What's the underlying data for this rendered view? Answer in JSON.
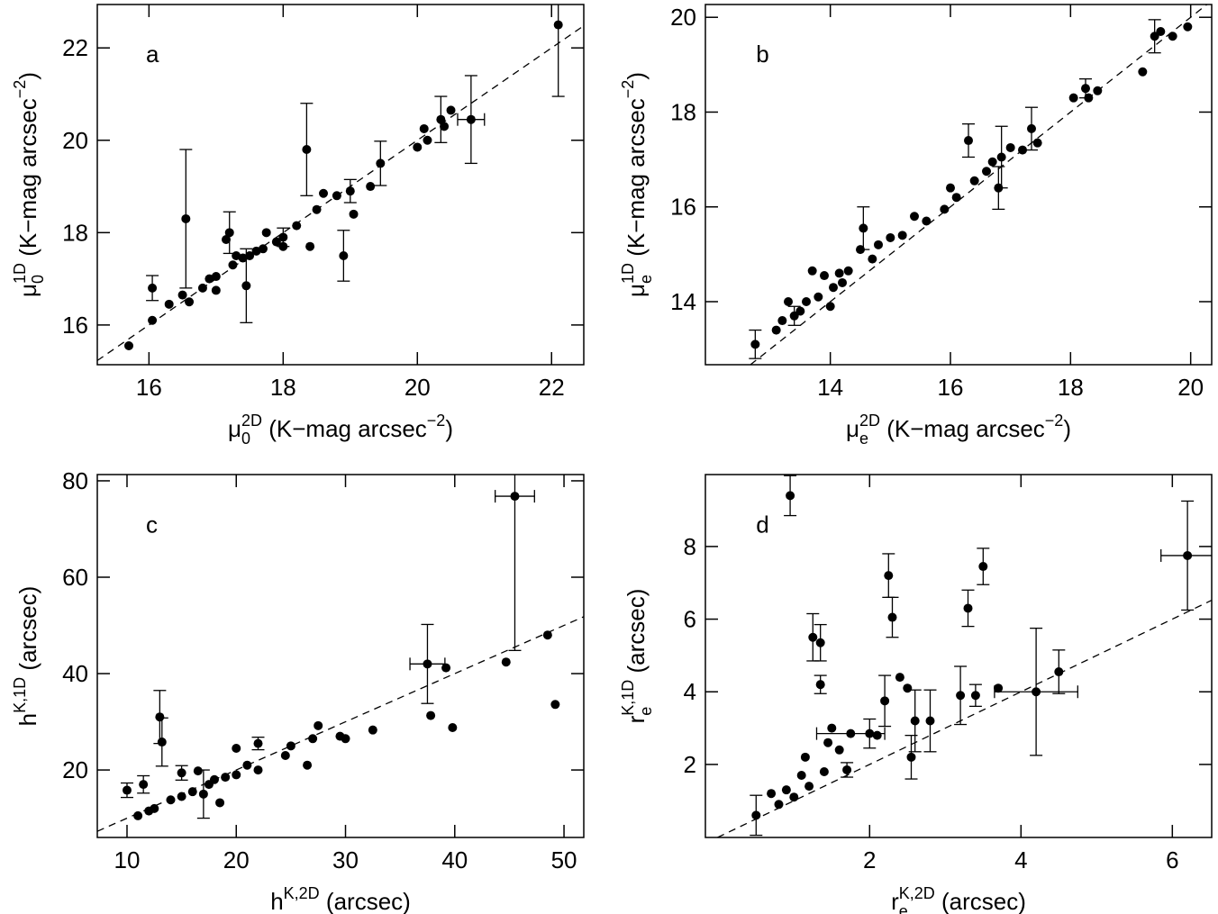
{
  "chart_data": [
    {
      "type": "scatter",
      "annotation": "a",
      "xlabel": [
        {
          "text": "μ"
        },
        {
          "text": "0",
          "shift": "sub"
        },
        {
          "text": "2D",
          "shift": "sup"
        },
        {
          "text": " (K−mag arcsec"
        },
        {
          "text": "−2",
          "shift": "sup"
        },
        {
          "text": ")"
        }
      ],
      "ylabel": [
        {
          "text": "μ"
        },
        {
          "text": "0",
          "shift": "sub"
        },
        {
          "text": "1D",
          "shift": "sup"
        },
        {
          "text": " (K−mag arcsec"
        },
        {
          "text": "−2",
          "shift": "sup"
        },
        {
          "text": ")"
        }
      ],
      "xlim": [
        15.23,
        22.48
      ],
      "ylim": [
        15.14,
        22.94
      ],
      "xticks": [
        16,
        18,
        20,
        22
      ],
      "yticks": [
        16,
        18,
        20,
        22
      ],
      "identity_line": true,
      "color": "#000000",
      "x": [
        15.7,
        16.05,
        16.05,
        16.3,
        16.5,
        16.55,
        16.6,
        16.8,
        16.9,
        17.0,
        17.0,
        17.15,
        17.2,
        17.25,
        17.3,
        17.4,
        17.45,
        17.5,
        17.6,
        17.7,
        17.75,
        17.9,
        18.0,
        18.0,
        18.2,
        18.35,
        18.4,
        18.5,
        18.6,
        18.8,
        18.9,
        19.0,
        19.05,
        19.3,
        19.45,
        20.0,
        20.1,
        20.15,
        20.35,
        20.4,
        20.5,
        20.8,
        22.1
      ],
      "values": [
        15.55,
        16.1,
        16.8,
        16.45,
        16.65,
        18.3,
        16.5,
        16.8,
        17.0,
        16.75,
        17.05,
        17.85,
        18.0,
        17.3,
        17.5,
        17.45,
        16.85,
        17.5,
        17.6,
        17.65,
        18.0,
        17.8,
        17.9,
        17.7,
        18.15,
        19.8,
        17.7,
        18.5,
        18.85,
        18.8,
        17.5,
        18.9,
        18.4,
        19.0,
        19.5,
        19.85,
        20.25,
        20.0,
        20.45,
        20.3,
        20.65,
        20.45,
        22.5
      ],
      "yerr": [
        null,
        null,
        0.27,
        null,
        null,
        1.5,
        null,
        null,
        null,
        null,
        null,
        null,
        0.45,
        null,
        null,
        null,
        0.8,
        null,
        null,
        null,
        null,
        null,
        0.2,
        null,
        null,
        1.0,
        null,
        null,
        null,
        null,
        0.55,
        0.25,
        null,
        null,
        0.48,
        null,
        null,
        null,
        0.5,
        null,
        null,
        0.95,
        1.55
      ],
      "xerr": [
        null,
        null,
        null,
        null,
        null,
        null,
        null,
        null,
        null,
        null,
        null,
        null,
        null,
        null,
        null,
        null,
        null,
        null,
        null,
        null,
        null,
        null,
        null,
        null,
        null,
        null,
        null,
        null,
        null,
        null,
        null,
        null,
        null,
        null,
        null,
        null,
        null,
        null,
        null,
        null,
        null,
        0.2,
        null
      ]
    },
    {
      "type": "scatter",
      "annotation": "b",
      "xlabel": [
        {
          "text": "μ"
        },
        {
          "text": "e",
          "shift": "sub"
        },
        {
          "text": "2D",
          "shift": "sup"
        },
        {
          "text": " (K−mag arcsec"
        },
        {
          "text": "−2",
          "shift": "sup"
        },
        {
          "text": ")"
        }
      ],
      "ylabel": [
        {
          "text": "μ"
        },
        {
          "text": "e",
          "shift": "sub"
        },
        {
          "text": "1D",
          "shift": "sup"
        },
        {
          "text": " (K−mag arcsec"
        },
        {
          "text": "−2",
          "shift": "sup"
        },
        {
          "text": ")"
        }
      ],
      "xlim": [
        11.92,
        20.35
      ],
      "ylim": [
        12.67,
        20.27
      ],
      "xticks": [
        14,
        16,
        18,
        20
      ],
      "yticks": [
        14,
        16,
        18,
        20
      ],
      "identity_line": true,
      "color": "#000000",
      "x": [
        12.75,
        13.1,
        13.2,
        13.3,
        13.4,
        13.5,
        13.6,
        13.7,
        13.8,
        13.9,
        14.0,
        14.05,
        14.15,
        14.2,
        14.3,
        14.5,
        14.55,
        14.7,
        14.8,
        15.0,
        15.2,
        15.4,
        15.6,
        15.9,
        16.0,
        16.1,
        16.3,
        16.4,
        16.6,
        16.7,
        16.8,
        16.85,
        17.0,
        17.2,
        17.35,
        17.45,
        18.05,
        18.25,
        18.3,
        18.45,
        19.2,
        19.4,
        19.5,
        19.7,
        19.95
      ],
      "values": [
        13.1,
        13.4,
        13.6,
        14.0,
        13.7,
        13.8,
        14.0,
        14.65,
        14.1,
        14.55,
        13.9,
        14.3,
        14.6,
        14.4,
        14.65,
        15.1,
        15.55,
        14.9,
        15.2,
        15.35,
        15.4,
        15.8,
        15.7,
        15.95,
        16.4,
        16.2,
        17.4,
        16.55,
        16.75,
        16.95,
        16.4,
        17.05,
        17.25,
        17.2,
        17.65,
        17.35,
        18.3,
        18.5,
        18.3,
        18.45,
        18.85,
        19.6,
        19.7,
        19.6,
        19.8
      ],
      "yerr": [
        0.3,
        null,
        null,
        null,
        0.2,
        null,
        null,
        null,
        null,
        null,
        null,
        null,
        null,
        null,
        null,
        null,
        0.45,
        null,
        null,
        null,
        null,
        null,
        null,
        null,
        null,
        null,
        0.35,
        null,
        null,
        null,
        0.45,
        0.65,
        null,
        null,
        0.45,
        null,
        null,
        0.2,
        null,
        null,
        null,
        0.35,
        null,
        null,
        null
      ]
    },
    {
      "type": "scatter",
      "annotation": "c",
      "xlabel": [
        {
          "text": "h"
        },
        {
          "text": "K,2D",
          "shift": "sup"
        },
        {
          "text": " (arcsec)"
        }
      ],
      "ylabel": [
        {
          "text": "h"
        },
        {
          "text": "K,1D",
          "shift": "sup"
        },
        {
          "text": " (arcsec)"
        }
      ],
      "xlim": [
        7.28,
        51.81
      ],
      "ylim": [
        6.0,
        81.3
      ],
      "xticks": [
        10,
        20,
        30,
        40,
        50
      ],
      "yticks": [
        20,
        40,
        60,
        80
      ],
      "identity_line": true,
      "color": "#000000",
      "x": [
        10,
        11,
        11.5,
        12,
        12.5,
        13,
        13.2,
        14,
        15,
        15,
        16,
        16.5,
        17,
        17.5,
        18,
        18.5,
        19,
        20,
        20,
        21,
        22,
        22,
        24.5,
        25,
        26.5,
        27,
        27.5,
        29.5,
        30,
        32.5,
        37.5,
        37.8,
        39.2,
        39.8,
        44.7,
        45.5,
        48.5,
        49.2
      ],
      "values": [
        15.8,
        10.5,
        17,
        11.5,
        12,
        31,
        25.8,
        13.8,
        19.4,
        14.5,
        15.5,
        19.8,
        15,
        17,
        18,
        13.2,
        18.5,
        24.5,
        19,
        21,
        25.5,
        20,
        23,
        25,
        21,
        26.5,
        29.2,
        27,
        26.5,
        28.3,
        42,
        31.3,
        41.2,
        28.8,
        42.4,
        76.8,
        48,
        33.6
      ],
      "yerr": [
        1.5,
        null,
        1.8,
        null,
        null,
        5.5,
        5,
        null,
        1.5,
        null,
        null,
        null,
        5,
        null,
        null,
        null,
        null,
        null,
        null,
        null,
        1.3,
        null,
        null,
        null,
        null,
        null,
        null,
        null,
        null,
        null,
        8.2,
        null,
        null,
        null,
        null,
        32,
        null,
        null
      ],
      "xerr": [
        null,
        null,
        null,
        null,
        null,
        null,
        null,
        null,
        null,
        null,
        null,
        null,
        null,
        null,
        null,
        null,
        null,
        null,
        null,
        null,
        null,
        null,
        null,
        null,
        null,
        null,
        null,
        null,
        null,
        null,
        1.6,
        null,
        null,
        null,
        null,
        1.8,
        null,
        null
      ]
    },
    {
      "type": "scatter",
      "annotation": "d",
      "xlabel": [
        {
          "text": "r"
        },
        {
          "text": "e",
          "shift": "sub"
        },
        {
          "text": "K,2D",
          "shift": "sup"
        },
        {
          "text": " (arcsec)"
        }
      ],
      "ylabel": [
        {
          "text": "r"
        },
        {
          "text": "e",
          "shift": "sub"
        },
        {
          "text": "K,1D",
          "shift": "sup"
        },
        {
          "text": " (arcsec)"
        }
      ],
      "xlim": [
        -0.17,
        6.52
      ],
      "ylim": [
        -0.01,
        9.98
      ],
      "xticks": [
        2,
        4,
        6
      ],
      "yticks": [
        2,
        4,
        6,
        8
      ],
      "identity_line": true,
      "color": "#000000",
      "x": [
        0.5,
        0.7,
        0.8,
        0.9,
        0.95,
        1.0,
        1.1,
        1.15,
        1.2,
        1.25,
        1.35,
        1.35,
        1.4,
        1.45,
        1.5,
        1.6,
        1.7,
        1.75,
        2.0,
        2.1,
        2.2,
        2.25,
        2.3,
        2.4,
        2.5,
        2.55,
        2.6,
        2.8,
        3.2,
        3.3,
        3.4,
        3.5,
        3.7,
        4.2,
        4.5,
        6.2
      ],
      "values": [
        0.6,
        1.2,
        0.9,
        1.3,
        9.4,
        1.1,
        1.7,
        2.2,
        1.4,
        5.5,
        5.35,
        4.2,
        1.8,
        2.6,
        3.0,
        2.4,
        1.85,
        2.85,
        2.85,
        2.8,
        3.75,
        7.2,
        6.05,
        4.4,
        4.1,
        2.2,
        3.2,
        3.2,
        3.9,
        6.3,
        3.9,
        7.45,
        4.1,
        4.0,
        4.55,
        7.75
      ],
      "yerr": [
        0.55,
        null,
        null,
        null,
        0.55,
        null,
        null,
        null,
        null,
        0.65,
        0.5,
        0.25,
        null,
        null,
        null,
        null,
        0.2,
        null,
        0.4,
        null,
        0.7,
        0.6,
        0.55,
        null,
        null,
        0.6,
        0.85,
        0.85,
        0.8,
        0.5,
        0.3,
        0.5,
        null,
        1.75,
        0.6,
        1.5
      ],
      "xerr": [
        null,
        null,
        null,
        null,
        null,
        null,
        null,
        null,
        null,
        null,
        null,
        null,
        null,
        null,
        null,
        null,
        null,
        0.45,
        null,
        null,
        null,
        null,
        null,
        null,
        null,
        null,
        null,
        null,
        null,
        null,
        null,
        null,
        null,
        0.55,
        null,
        0.35
      ]
    }
  ]
}
